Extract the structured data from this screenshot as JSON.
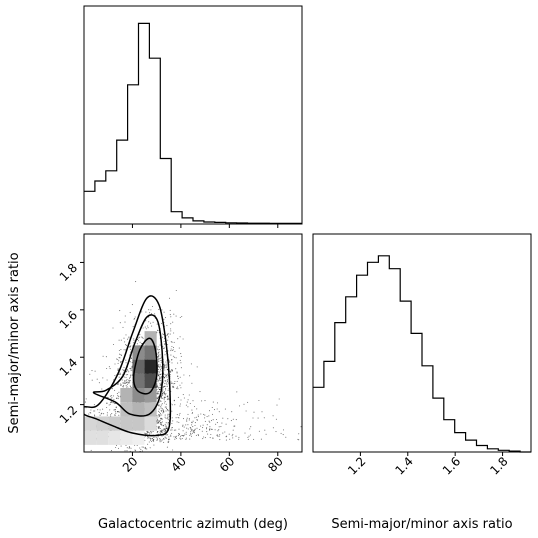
{
  "chart_data": [
    {
      "type": "histogram",
      "panel": "top-left",
      "variable": "Galactocentric azimuth (deg)",
      "xlim": [
        0,
        90
      ],
      "x_ticks": [
        20,
        40,
        60,
        80
      ],
      "show_tick_labels": false,
      "bin_edges": [
        0,
        4.5,
        9,
        13.5,
        18,
        22.5,
        27,
        31.5,
        36,
        40.5,
        45,
        49.5,
        54,
        58.5,
        63,
        67.5,
        72,
        76.5,
        81,
        85.5,
        90
      ],
      "counts": [
        0.16,
        0.21,
        0.26,
        0.41,
        0.68,
        0.98,
        0.81,
        0.32,
        0.06,
        0.03,
        0.015,
        0.01,
        0.008,
        0.006,
        0.005,
        0.004,
        0.004,
        0.003,
        0.003,
        0.003
      ]
    },
    {
      "type": "histogram",
      "panel": "bottom-right",
      "variable": "Semi-major/minor axis ratio",
      "xlim": [
        1.0,
        1.92
      ],
      "x_ticks": [
        1.2,
        1.4,
        1.6,
        1.8
      ],
      "x_tick_labels": [
        "1.2",
        "1.4",
        "1.6",
        "1.8"
      ],
      "xlabel": "Semi-major/minor axis ratio",
      "bin_edges": [
        1.0,
        1.046,
        1.092,
        1.138,
        1.184,
        1.23,
        1.276,
        1.322,
        1.368,
        1.414,
        1.46,
        1.506,
        1.552,
        1.598,
        1.644,
        1.69,
        1.736,
        1.782,
        1.828,
        1.874,
        1.92
      ],
      "counts": [
        0.3,
        0.42,
        0.6,
        0.72,
        0.82,
        0.88,
        0.91,
        0.85,
        0.7,
        0.55,
        0.4,
        0.25,
        0.15,
        0.09,
        0.055,
        0.03,
        0.015,
        0.008,
        0.004,
        0.0
      ]
    },
    {
      "type": "scatter_density",
      "panel": "bottom-left",
      "xlabel": "Galactocentric azimuth (deg)",
      "ylabel": "Semi-major/minor axis ratio",
      "xlim": [
        0,
        90
      ],
      "ylim": [
        1.0,
        1.92
      ],
      "x_ticks": [
        20,
        40,
        60,
        80
      ],
      "x_tick_labels": [
        "20",
        "40",
        "60",
        "80"
      ],
      "y_ticks": [
        1.2,
        1.4,
        1.6,
        1.8
      ],
      "y_tick_labels": [
        "1.2",
        "1.4",
        "1.6",
        "1.8"
      ],
      "density_peak": [
        25,
        1.34
      ],
      "contours": [
        {
          "level": "inner",
          "points": [
            [
              22,
              1.26
            ],
            [
              27,
              1.25
            ],
            [
              30,
              1.32
            ],
            [
              29.5,
              1.43
            ],
            [
              27,
              1.48
            ],
            [
              23,
              1.43
            ],
            [
              20.5,
              1.32
            ]
          ]
        },
        {
          "level": "middle",
          "points": [
            [
              13,
              1.21
            ],
            [
              19,
              1.16
            ],
            [
              27,
              1.16
            ],
            [
              31.5,
              1.24
            ],
            [
              32.5,
              1.38
            ],
            [
              30.5,
              1.55
            ],
            [
              26,
              1.57
            ],
            [
              21,
              1.46
            ],
            [
              16,
              1.32
            ],
            [
              9,
              1.26
            ],
            [
              4,
              1.25
            ]
          ]
        },
        {
          "level": "outer",
          "points": [
            [
              0,
              1.16
            ],
            [
              5,
              1.14
            ],
            [
              12,
              1.11
            ],
            [
              20,
              1.08
            ],
            [
              30,
              1.07
            ],
            [
              35,
              1.1
            ],
            [
              35.5,
              1.25
            ],
            [
              34,
              1.45
            ],
            [
              31,
              1.62
            ],
            [
              26,
              1.65
            ],
            [
              20,
              1.5
            ],
            [
              14,
              1.33
            ],
            [
              6,
              1.2
            ],
            [
              0,
              1.19
            ]
          ]
        }
      ],
      "density_cells": [
        {
          "x": [
            0,
            5
          ],
          "y": [
            1.03,
            1.09
          ],
          "level": 0.12
        },
        {
          "x": [
            5,
            10
          ],
          "y": [
            1.03,
            1.09
          ],
          "level": 0.12
        },
        {
          "x": [
            10,
            15
          ],
          "y": [
            1.03,
            1.09
          ],
          "level": 0.1
        },
        {
          "x": [
            15,
            20
          ],
          "y": [
            1.03,
            1.09
          ],
          "level": 0.08
        },
        {
          "x": [
            20,
            25
          ],
          "y": [
            1.03,
            1.09
          ],
          "level": 0.06
        },
        {
          "x": [
            0,
            5
          ],
          "y": [
            1.09,
            1.15
          ],
          "level": 0.16
        },
        {
          "x": [
            5,
            10
          ],
          "y": [
            1.09,
            1.15
          ],
          "level": 0.18
        },
        {
          "x": [
            10,
            15
          ],
          "y": [
            1.09,
            1.15
          ],
          "level": 0.2
        },
        {
          "x": [
            15,
            20
          ],
          "y": [
            1.09,
            1.15
          ],
          "level": 0.22
        },
        {
          "x": [
            20,
            25
          ],
          "y": [
            1.09,
            1.15
          ],
          "level": 0.22
        },
        {
          "x": [
            25,
            30
          ],
          "y": [
            1.09,
            1.15
          ],
          "level": 0.14
        },
        {
          "x": [
            15,
            20
          ],
          "y": [
            1.15,
            1.21
          ],
          "level": 0.25
        },
        {
          "x": [
            20,
            25
          ],
          "y": [
            1.15,
            1.21
          ],
          "level": 0.3
        },
        {
          "x": [
            25,
            30
          ],
          "y": [
            1.15,
            1.21
          ],
          "level": 0.25
        },
        {
          "x": [
            15,
            20
          ],
          "y": [
            1.21,
            1.27
          ],
          "level": 0.3
        },
        {
          "x": [
            20,
            25
          ],
          "y": [
            1.21,
            1.27
          ],
          "level": 0.45
        },
        {
          "x": [
            25,
            30
          ],
          "y": [
            1.21,
            1.27
          ],
          "level": 0.4
        },
        {
          "x": [
            20,
            25
          ],
          "y": [
            1.27,
            1.33
          ],
          "level": 0.55
        },
        {
          "x": [
            25,
            30
          ],
          "y": [
            1.27,
            1.33
          ],
          "level": 0.7
        },
        {
          "x": [
            20,
            25
          ],
          "y": [
            1.33,
            1.39
          ],
          "level": 0.6
        },
        {
          "x": [
            25,
            30
          ],
          "y": [
            1.33,
            1.39
          ],
          "level": 0.85
        },
        {
          "x": [
            20,
            25
          ],
          "y": [
            1.39,
            1.45
          ],
          "level": 0.45
        },
        {
          "x": [
            25,
            30
          ],
          "y": [
            1.39,
            1.45
          ],
          "level": 0.55
        },
        {
          "x": [
            25,
            30
          ],
          "y": [
            1.45,
            1.51
          ],
          "level": 0.3
        }
      ]
    }
  ]
}
